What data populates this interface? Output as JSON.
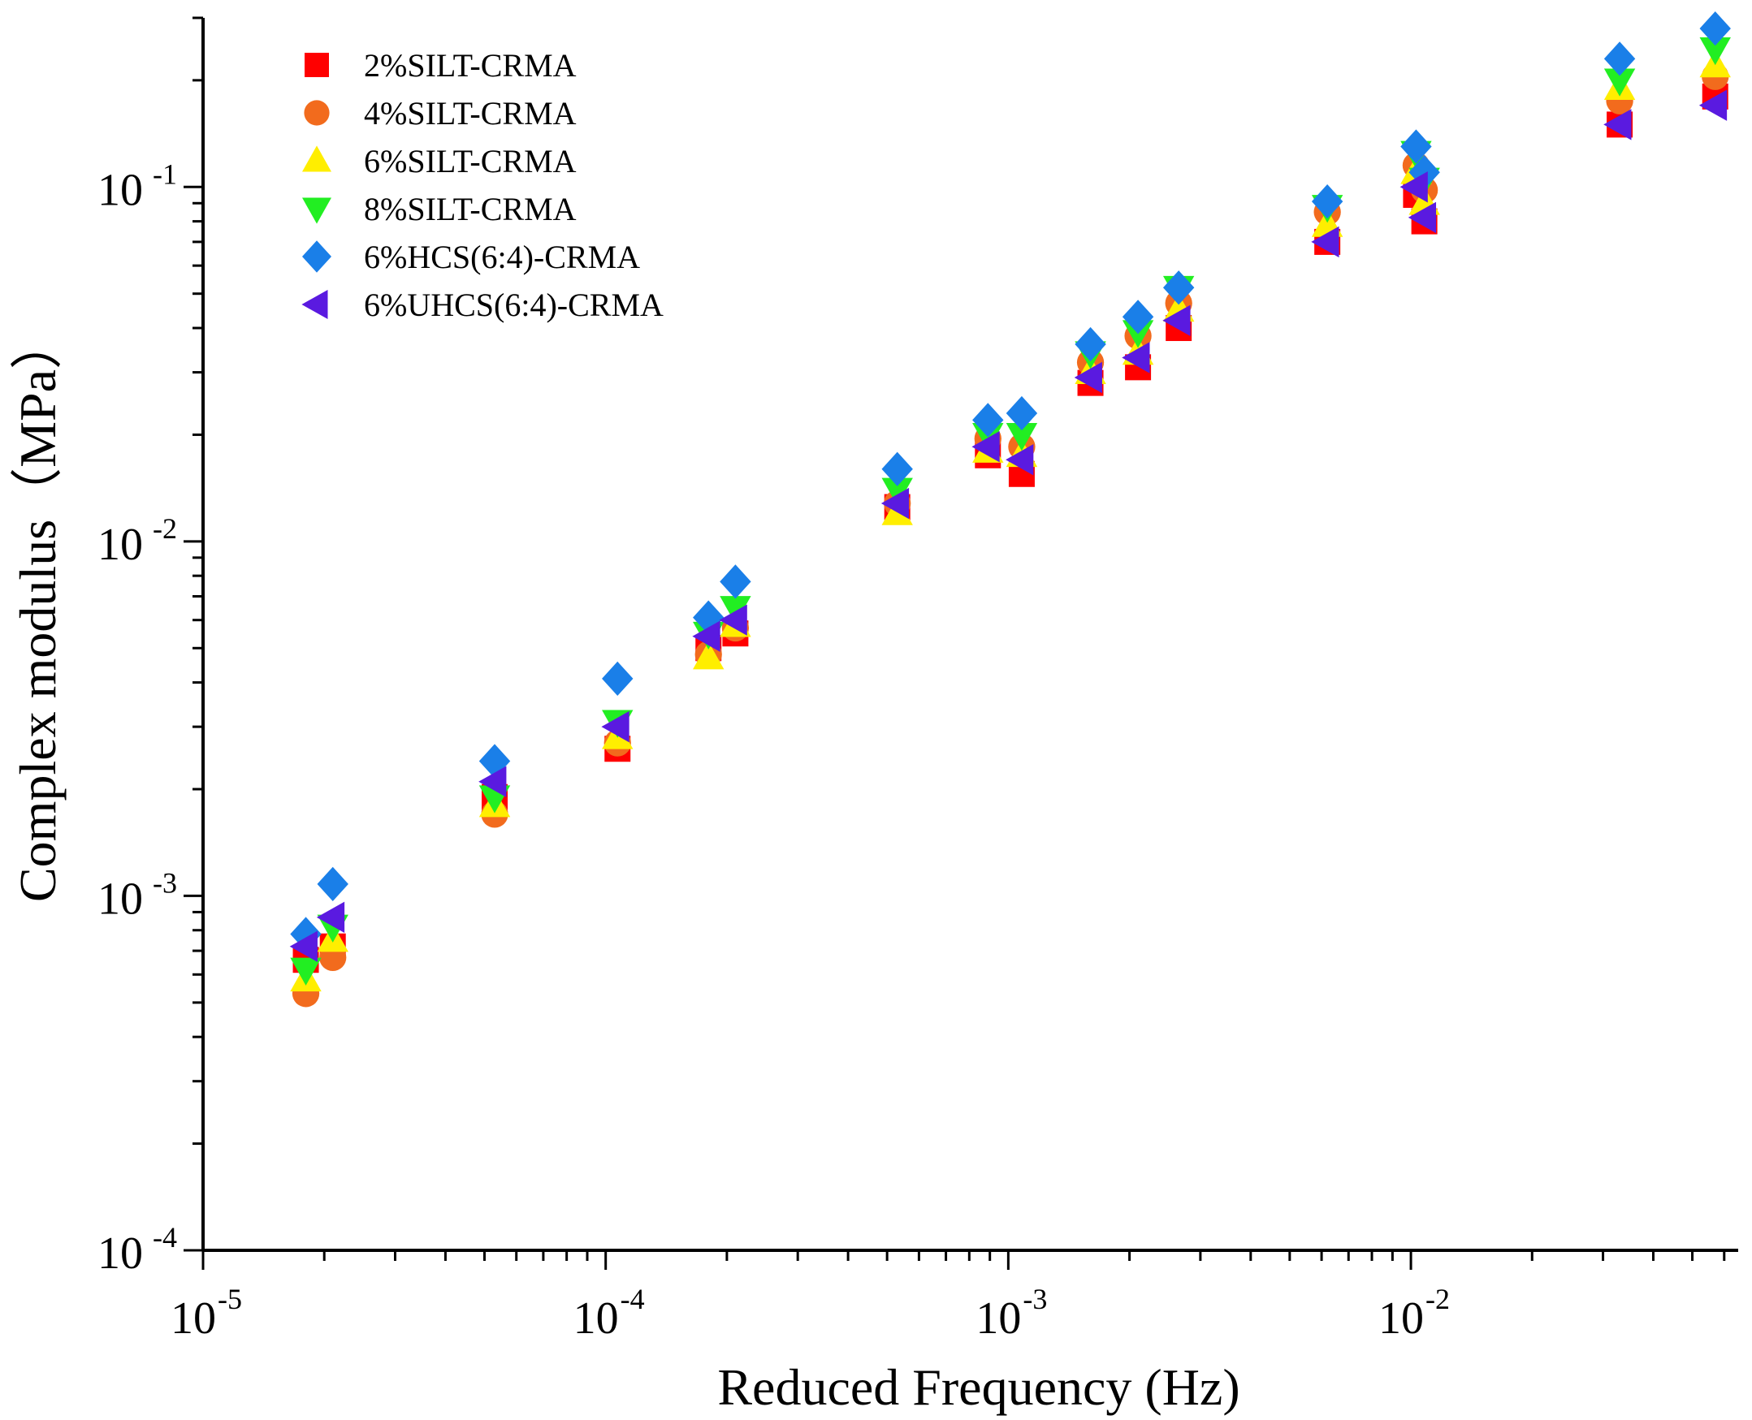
{
  "chart_data": {
    "type": "scatter",
    "title": "",
    "xlabel": "Reduced Frequency (Hz)",
    "ylabel": "Complex modulus（MPa）",
    "xscale": "log",
    "yscale": "log",
    "xlim": [
      1e-05,
      0.065
    ],
    "ylim": [
      0.0001,
      0.3
    ],
    "grid": false,
    "legend_position": "top-left",
    "x_ticks": [
      {
        "value": 1e-05,
        "base": "10",
        "exp": "-5"
      },
      {
        "value": 0.0001,
        "base": "10",
        "exp": "-4"
      },
      {
        "value": 0.001,
        "base": "10",
        "exp": "-3"
      },
      {
        "value": 0.01,
        "base": "10",
        "exp": "-2"
      }
    ],
    "y_ticks": [
      {
        "value": 0.0001,
        "base": "10",
        "exp": "-4"
      },
      {
        "value": 0.001,
        "base": "10",
        "exp": "-3"
      },
      {
        "value": 0.01,
        "base": "10",
        "exp": "-2"
      },
      {
        "value": 0.1,
        "base": "10",
        "exp": "-1"
      }
    ],
    "x": [
      1.8e-05,
      2.1e-05,
      5.3e-05,
      0.000107,
      0.00018,
      0.00021,
      0.00053,
      0.00089,
      0.00108,
      0.0016,
      0.0021,
      0.00265,
      0.0062,
      0.0103,
      0.0108,
      0.033,
      0.057
    ],
    "series": [
      {
        "name": "2%SILT-CRMA",
        "marker": "square",
        "color": "#ff0000",
        "values": [
          0.00066,
          0.00072,
          0.0019,
          0.0026,
          0.005,
          0.0055,
          0.0125,
          0.0175,
          0.0155,
          0.028,
          0.031,
          0.04,
          0.07,
          0.095,
          0.08,
          0.15,
          0.18
        ]
      },
      {
        "name": "4%SILT-CRMA",
        "marker": "circle",
        "color": "#f26b1d",
        "values": [
          0.00053,
          0.00067,
          0.0017,
          0.0027,
          0.0048,
          0.0057,
          0.0128,
          0.0195,
          0.0185,
          0.032,
          0.038,
          0.047,
          0.085,
          0.115,
          0.098,
          0.175,
          0.205
        ]
      },
      {
        "name": "6%SILT-CRMA",
        "marker": "triangle-up",
        "color": "#ffee00",
        "values": [
          0.00058,
          0.00075,
          0.0018,
          0.0028,
          0.0047,
          0.0058,
          0.012,
          0.018,
          0.0175,
          0.03,
          0.034,
          0.045,
          0.078,
          0.11,
          0.09,
          0.19,
          0.22
        ]
      },
      {
        "name": "8%SILT-CRMA",
        "marker": "triangle-down",
        "color": "#22ee22",
        "values": [
          0.00062,
          0.00082,
          0.0019,
          0.0031,
          0.0055,
          0.0065,
          0.014,
          0.02,
          0.02,
          0.034,
          0.039,
          0.052,
          0.088,
          0.125,
          0.105,
          0.2,
          0.245
        ]
      },
      {
        "name": "6%HCS(6:4)-CRMA",
        "marker": "diamond",
        "color": "#1a7fe8",
        "values": [
          0.00078,
          0.00108,
          0.0024,
          0.0041,
          0.0061,
          0.0077,
          0.016,
          0.022,
          0.023,
          0.036,
          0.043,
          0.052,
          0.091,
          0.13,
          0.11,
          0.23,
          0.28
        ]
      },
      {
        "name": "6%UHCS(6:4)-CRMA",
        "marker": "triangle-left",
        "color": "#5a1ae0",
        "values": [
          0.00072,
          0.00087,
          0.0021,
          0.003,
          0.0054,
          0.006,
          0.0128,
          0.0185,
          0.017,
          0.029,
          0.033,
          0.042,
          0.07,
          0.1,
          0.082,
          0.15,
          0.17
        ]
      }
    ]
  }
}
